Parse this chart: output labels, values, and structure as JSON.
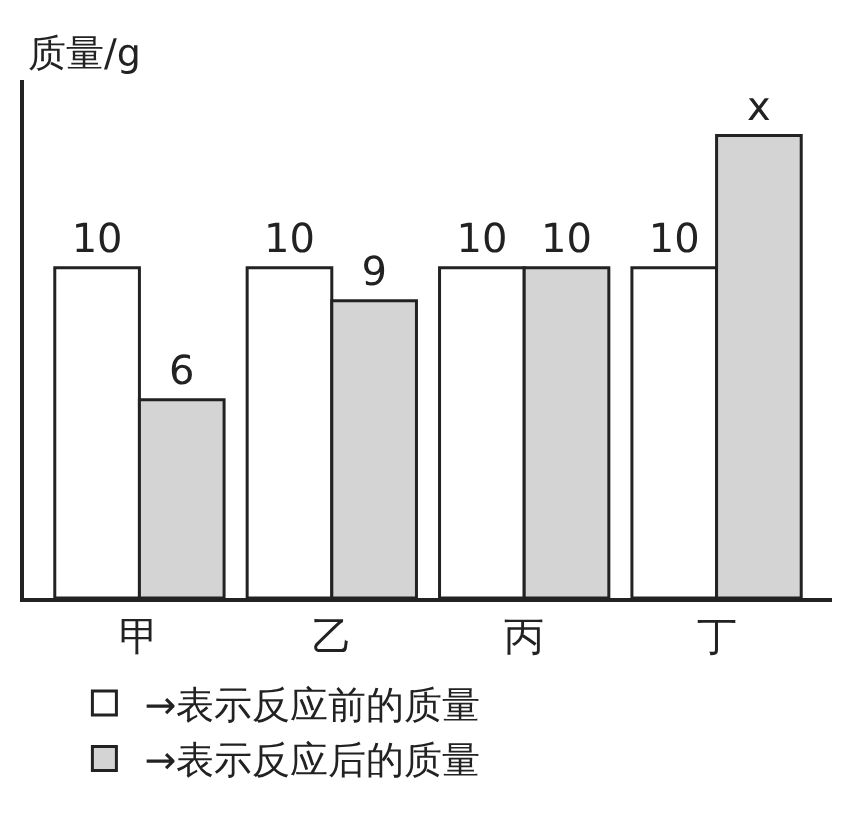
{
  "chart_data": {
    "type": "bar",
    "ylabel": "质量/g",
    "categories": [
      "甲",
      "乙",
      "丙",
      "丁"
    ],
    "series": [
      {
        "name": "→表示反应前的质量",
        "color": "#ffffff",
        "values": [
          10,
          10,
          10,
          10
        ],
        "value_labels": [
          "10",
          "10",
          "10",
          "10"
        ]
      },
      {
        "name": "→表示反应后的质量",
        "color": "#d4d4d4",
        "values": [
          6,
          9,
          10,
          14
        ],
        "value_labels": [
          "6",
          "9",
          "10",
          "x"
        ]
      }
    ],
    "legend": "bottom",
    "tick_labels": "x"
  }
}
